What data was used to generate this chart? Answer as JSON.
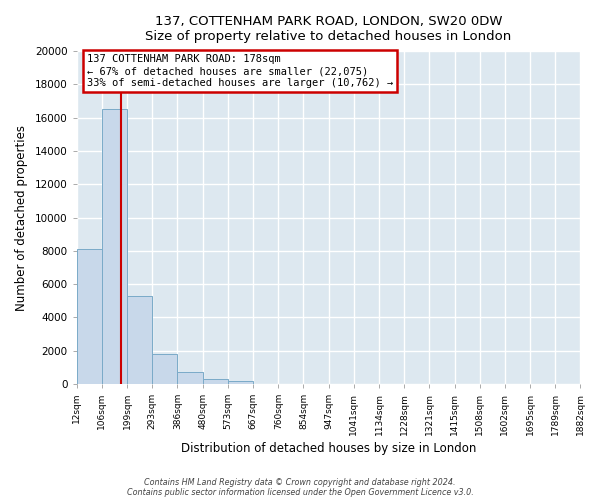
{
  "title": "137, COTTENHAM PARK ROAD, LONDON, SW20 0DW",
  "subtitle": "Size of property relative to detached houses in London",
  "xlabel": "Distribution of detached houses by size in London",
  "ylabel": "Number of detached properties",
  "bin_labels": [
    "12sqm",
    "106sqm",
    "199sqm",
    "293sqm",
    "386sqm",
    "480sqm",
    "573sqm",
    "667sqm",
    "760sqm",
    "854sqm",
    "947sqm",
    "1041sqm",
    "1134sqm",
    "1228sqm",
    "1321sqm",
    "1415sqm",
    "1508sqm",
    "1602sqm",
    "1695sqm",
    "1789sqm",
    "1882sqm"
  ],
  "bar_heights": [
    8100,
    16500,
    5300,
    1800,
    700,
    300,
    200,
    0,
    0,
    0,
    0,
    0,
    0,
    0,
    0,
    0,
    0,
    0,
    0,
    0,
    0
  ],
  "bar_color": "#c8d8ea",
  "bar_edge_color": "#7aaac8",
  "ylim": [
    0,
    20000
  ],
  "yticks": [
    0,
    2000,
    4000,
    6000,
    8000,
    10000,
    12000,
    14000,
    16000,
    18000,
    20000
  ],
  "bin_edges_sqm": [
    12,
    106,
    199,
    293,
    386,
    480,
    573,
    667,
    760,
    854,
    947,
    1041,
    1134,
    1228,
    1321,
    1415,
    1508,
    1602,
    1695,
    1789,
    1882
  ],
  "property_sqm": 178,
  "annotation_title": "137 COTTENHAM PARK ROAD: 178sqm",
  "annotation_line1": "← 67% of detached houses are smaller (22,075)",
  "annotation_line2": "33% of semi-detached houses are larger (10,762) →",
  "annotation_box_color": "#ffffff",
  "annotation_box_edge": "#cc0000",
  "red_line_color": "#cc0000",
  "footer_line1": "Contains HM Land Registry data © Crown copyright and database right 2024.",
  "footer_line2": "Contains public sector information licensed under the Open Government Licence v3.0.",
  "background_color": "#ffffff",
  "plot_bg_color": "#dde8f0",
  "grid_color": "#ffffff"
}
